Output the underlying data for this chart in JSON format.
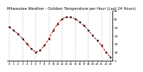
{
  "title": "Milwaukee Weather - Outdoor Temperature per Hour (Last 24 Hours)",
  "hours": [
    0,
    1,
    2,
    3,
    4,
    5,
    6,
    7,
    8,
    9,
    10,
    11,
    12,
    13,
    14,
    15,
    16,
    17,
    18,
    19,
    20,
    21,
    22,
    23
  ],
  "temps": [
    25,
    23,
    21,
    18,
    15,
    12,
    10,
    11,
    14,
    18,
    23,
    27,
    30,
    31,
    31,
    30,
    28,
    26,
    23,
    20,
    17,
    14,
    10,
    7
  ],
  "line_color": "#cc0000",
  "marker_color": "#000000",
  "bg_color": "#ffffff",
  "grid_color": "#888888",
  "title_fontsize": 3.8,
  "ylim": [
    5,
    35
  ],
  "yticks": [
    5,
    10,
    15,
    20,
    25,
    30,
    35
  ],
  "ylabel_fontsize": 3.2,
  "xlabel_fontsize": 2.8,
  "vgrid_hours": [
    0,
    3,
    6,
    9,
    12,
    15,
    18,
    21,
    23
  ]
}
